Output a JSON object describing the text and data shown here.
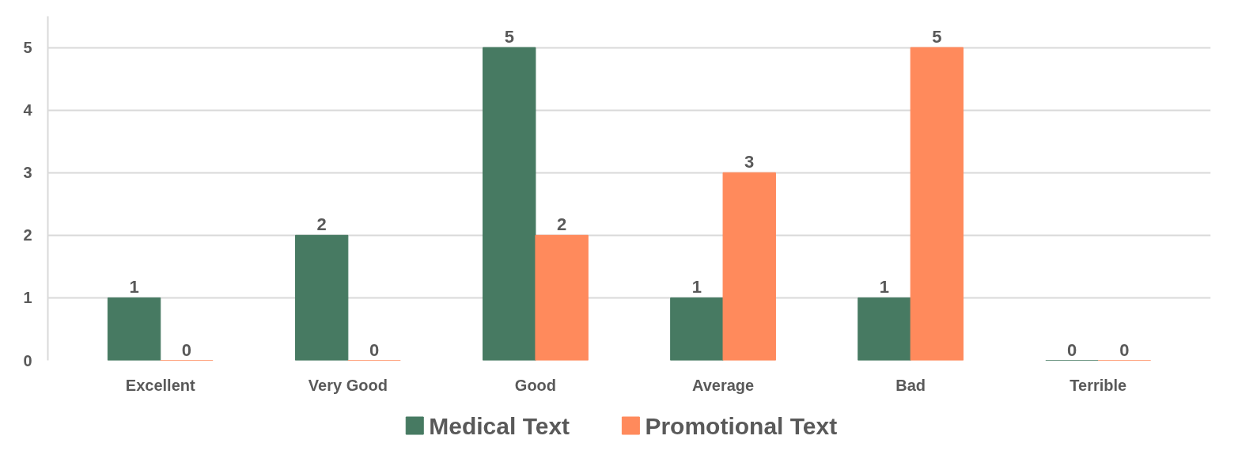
{
  "chart_data": {
    "type": "bar",
    "categories": [
      "Excellent",
      "Very Good",
      "Good",
      "Average",
      "Bad",
      "Terrible"
    ],
    "series": [
      {
        "name": "Medical Text",
        "color": "#477a62",
        "values": [
          1,
          2,
          5,
          1,
          1,
          0
        ]
      },
      {
        "name": "Promotional Text",
        "color": "#ff8a5c",
        "values": [
          0,
          0,
          2,
          3,
          5,
          0
        ]
      }
    ],
    "ylim": [
      0,
      5.5
    ],
    "yticks": [
      0,
      1,
      2,
      3,
      4,
      5
    ],
    "grid": "y",
    "legend": "bottom",
    "data_labels": true
  }
}
